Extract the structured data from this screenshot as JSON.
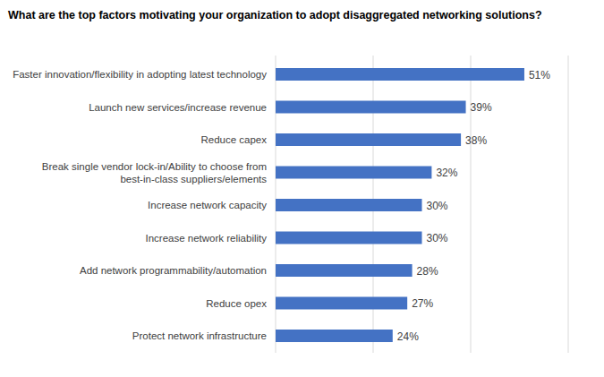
{
  "chart_data": {
    "type": "bar",
    "orientation": "horizontal",
    "title": "What are the top factors motivating your organization to adopt disaggregated networking solutions?",
    "categories": [
      "Faster innovation/flexibility in adopting latest technology",
      "Launch new services/increase revenue",
      "Reduce capex",
      "Break single vendor lock-in/Ability to choose from best-in-class suppliers/elements",
      "Increase network capacity",
      "Increase network reliability",
      "Add network programmability/automation",
      "Reduce opex",
      "Protect network infrastructure"
    ],
    "values": [
      51,
      39,
      38,
      32,
      30,
      30,
      28,
      27,
      24
    ],
    "value_labels": [
      "51%",
      "39%",
      "38%",
      "32%",
      "30%",
      "30%",
      "28%",
      "27%",
      "24%"
    ],
    "color": "#4472c4",
    "xlim": [
      0,
      60
    ],
    "xticks": [
      0,
      20,
      40,
      60
    ],
    "grid": true,
    "data_labels": true,
    "tick_labels": false
  }
}
